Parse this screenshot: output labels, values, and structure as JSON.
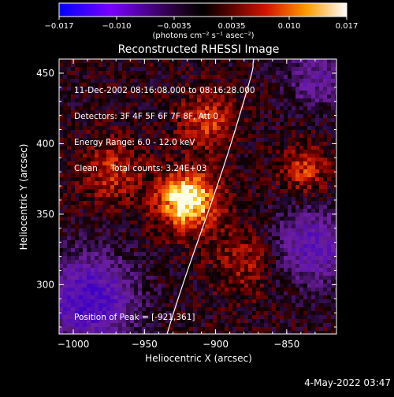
{
  "chart_data": {
    "type": "heatmap",
    "title": "Reconstructed RHESSI Image",
    "xlabel": "Heliocentric X (arcsec)",
    "ylabel": "Heliocentric Y (arcsec)",
    "xlim": [
      -1010,
      -815
    ],
    "ylim": [
      265,
      460
    ],
    "x_ticks": [
      "-1000",
      "-950",
      "-900",
      "-850"
    ],
    "y_ticks": [
      "450",
      "400",
      "350",
      "300"
    ],
    "colorbar": {
      "label": "(photons cm⁻² s⁻¹ asec⁻²)",
      "range": [
        -0.017,
        0.017
      ],
      "ticks": [
        "−0.017",
        "−0.010",
        "−0.0035",
        "0.0035",
        "0.010",
        "0.017"
      ],
      "colors": [
        "#0000ff",
        "#8a00ff",
        "#000000",
        "#8b0000",
        "#ff3a00",
        "#ffcc00",
        "#ffffff"
      ]
    },
    "peak": [
      -921,
      361
    ],
    "info_lines": [
      "11-Dec-2002 08:16:08.000 to 08:16:28.000",
      "Detectors: 3F 4F 5F 6F 7F 8F, Att 0",
      "Energy Range: 6.0 - 12.0 keV",
      "Clean     Total counts: 3.24E+03"
    ],
    "peak_label": "Position of Peak = [-921,361]",
    "limb_line": "white"
  },
  "footer": {
    "timestamp": "4-May-2022 03:47"
  }
}
